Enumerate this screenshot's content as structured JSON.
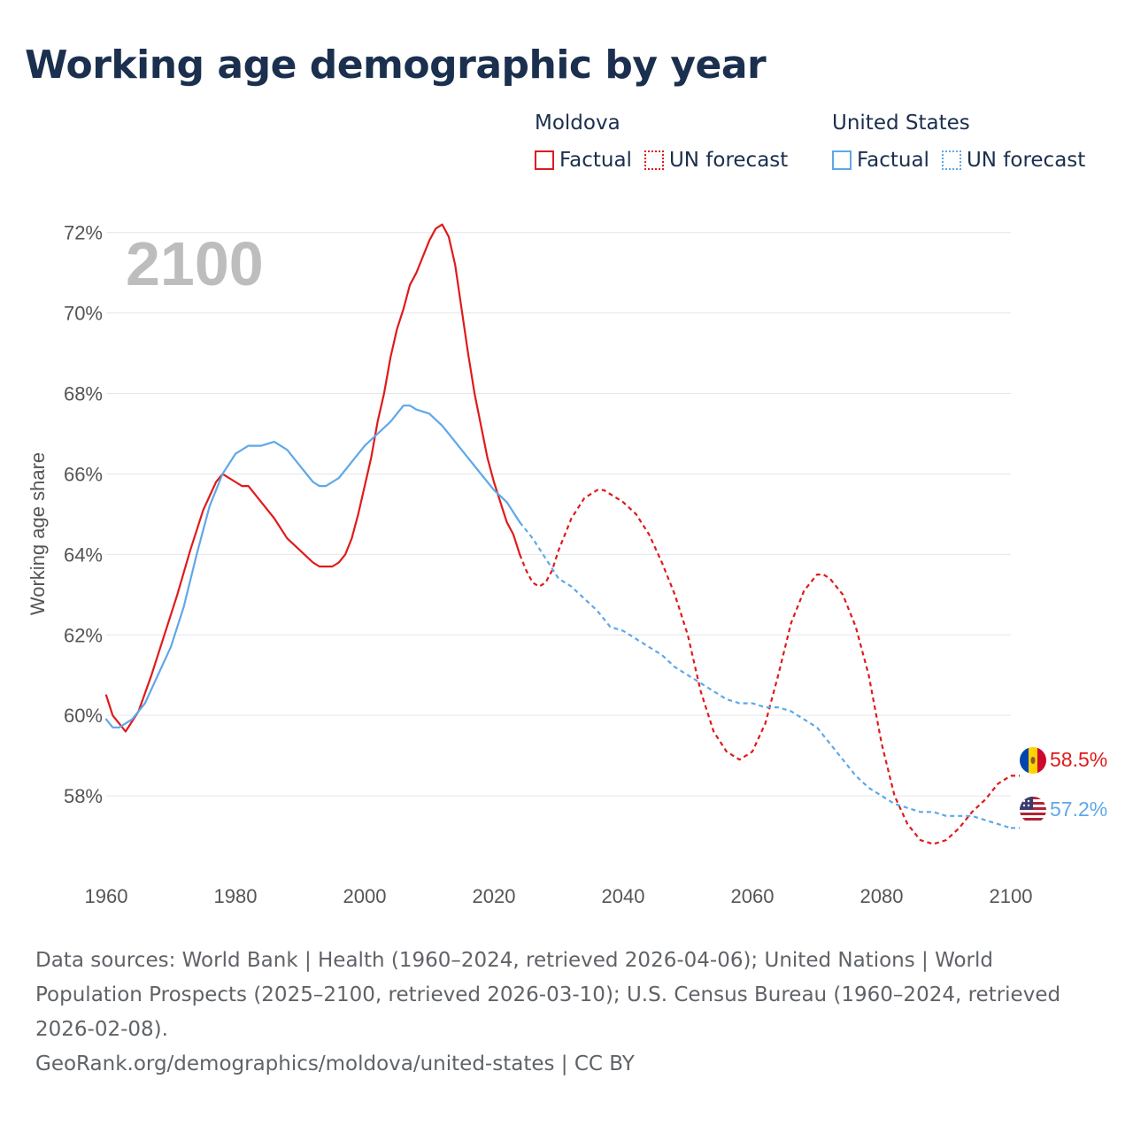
{
  "title": "Working age demographic by year",
  "legend": {
    "groups": [
      {
        "country": "Moldova",
        "color": "#e01a1a",
        "items": [
          {
            "label": "Factual",
            "style": "solid"
          },
          {
            "label": "UN forecast",
            "style": "dotted"
          }
        ]
      },
      {
        "country": "United States",
        "color": "#5ea8e8",
        "items": [
          {
            "label": "Factual",
            "style": "solid"
          },
          {
            "label": "UN forecast",
            "style": "dotted"
          }
        ]
      }
    ]
  },
  "year_watermark": "2100",
  "chart_data": {
    "type": "line",
    "title": "Working age demographic by year",
    "xlabel": "",
    "ylabel": "Working age share",
    "xlim": [
      1960,
      2100
    ],
    "ylim": [
      56,
      72.5
    ],
    "x_ticks": [
      "1960",
      "1980",
      "2000",
      "2020",
      "2040",
      "2060",
      "2080",
      "2100"
    ],
    "y_ticks": [
      "58%",
      "60%",
      "62%",
      "64%",
      "66%",
      "68%",
      "70%",
      "72%"
    ],
    "forecast_start": 2024,
    "series": [
      {
        "name": "Moldova",
        "color": "#e01a1a",
        "end_label": "58.5%",
        "flag": "moldova-flag",
        "x": [
          1960,
          1961,
          1963,
          1965,
          1967,
          1969,
          1971,
          1973,
          1975,
          1977,
          1978,
          1980,
          1981,
          1982,
          1984,
          1986,
          1988,
          1990,
          1992,
          1993,
          1994,
          1995,
          1996,
          1997,
          1998,
          1999,
          2000,
          2001,
          2002,
          2003,
          2004,
          2005,
          2006,
          2007,
          2008,
          2009,
          2010,
          2011,
          2012,
          2013,
          2014,
          2015,
          2016,
          2017,
          2018,
          2019,
          2020,
          2021,
          2022,
          2023,
          2024,
          2025,
          2026,
          2027,
          2028,
          2029,
          2030,
          2032,
          2034,
          2036,
          2037,
          2038,
          2040,
          2042,
          2044,
          2046,
          2048,
          2050,
          2052,
          2054,
          2056,
          2058,
          2060,
          2062,
          2064,
          2066,
          2068,
          2070,
          2071,
          2072,
          2074,
          2076,
          2078,
          2080,
          2082,
          2084,
          2086,
          2088,
          2090,
          2092,
          2094,
          2096,
          2098,
          2100
        ],
        "values": [
          60.5,
          60.0,
          59.6,
          60.1,
          61.0,
          62.0,
          63.0,
          64.1,
          65.1,
          65.8,
          66.0,
          65.8,
          65.7,
          65.7,
          65.3,
          64.9,
          64.4,
          64.1,
          63.8,
          63.7,
          63.7,
          63.7,
          63.8,
          64.0,
          64.4,
          65.0,
          65.7,
          66.4,
          67.3,
          68.0,
          68.9,
          69.6,
          70.1,
          70.7,
          71.0,
          71.4,
          71.8,
          72.1,
          72.2,
          71.9,
          71.2,
          70.1,
          69.0,
          68.0,
          67.2,
          66.4,
          65.8,
          65.3,
          64.8,
          64.5,
          64.0,
          63.6,
          63.3,
          63.2,
          63.3,
          63.6,
          64.1,
          64.9,
          65.4,
          65.6,
          65.6,
          65.5,
          65.3,
          65.0,
          64.5,
          63.8,
          63.0,
          62.0,
          60.6,
          59.6,
          59.1,
          58.9,
          59.1,
          59.8,
          61.0,
          62.3,
          63.1,
          63.5,
          63.5,
          63.4,
          63.0,
          62.2,
          61.0,
          59.3,
          58.0,
          57.3,
          56.9,
          56.8,
          56.9,
          57.2,
          57.6,
          57.9,
          58.3,
          58.5
        ]
      },
      {
        "name": "United States",
        "color": "#5ea8e8",
        "end_label": "57.2%",
        "flag": "united-states-flag",
        "x": [
          1960,
          1961,
          1962,
          1964,
          1966,
          1968,
          1970,
          1972,
          1974,
          1976,
          1978,
          1980,
          1982,
          1984,
          1986,
          1988,
          1990,
          1992,
          1993,
          1994,
          1996,
          1998,
          2000,
          2002,
          2004,
          2006,
          2007,
          2008,
          2010,
          2012,
          2014,
          2016,
          2018,
          2020,
          2022,
          2024,
          2025,
          2026,
          2028,
          2030,
          2032,
          2034,
          2036,
          2038,
          2040,
          2042,
          2044,
          2046,
          2048,
          2050,
          2052,
          2054,
          2056,
          2058,
          2060,
          2062,
          2064,
          2066,
          2068,
          2070,
          2072,
          2074,
          2076,
          2078,
          2080,
          2082,
          2084,
          2086,
          2088,
          2090,
          2092,
          2094,
          2096,
          2098,
          2100
        ],
        "values": [
          59.9,
          59.7,
          59.7,
          59.9,
          60.3,
          61.0,
          61.7,
          62.7,
          64.0,
          65.2,
          66.0,
          66.5,
          66.7,
          66.7,
          66.8,
          66.6,
          66.2,
          65.8,
          65.7,
          65.7,
          65.9,
          66.3,
          66.7,
          67.0,
          67.3,
          67.7,
          67.7,
          67.6,
          67.5,
          67.2,
          66.8,
          66.4,
          66.0,
          65.6,
          65.3,
          64.8,
          64.6,
          64.4,
          63.9,
          63.4,
          63.2,
          62.9,
          62.6,
          62.2,
          62.1,
          61.9,
          61.7,
          61.5,
          61.2,
          61.0,
          60.8,
          60.6,
          60.4,
          60.3,
          60.3,
          60.2,
          60.2,
          60.1,
          59.9,
          59.7,
          59.3,
          58.9,
          58.5,
          58.2,
          58.0,
          57.8,
          57.7,
          57.6,
          57.6,
          57.5,
          57.5,
          57.5,
          57.4,
          57.3,
          57.2
        ]
      }
    ]
  },
  "footer": {
    "sources": "Data sources: World Bank | Health (1960–2024, retrieved 2026-04-06); United Nations | World Population Prospects (2025–2100, retrieved 2026-03-10); U.S. Census Bureau (1960–2024, retrieved 2026-02-08).",
    "credit": "GeoRank.org/demographics/moldova/united-states | CC BY"
  }
}
